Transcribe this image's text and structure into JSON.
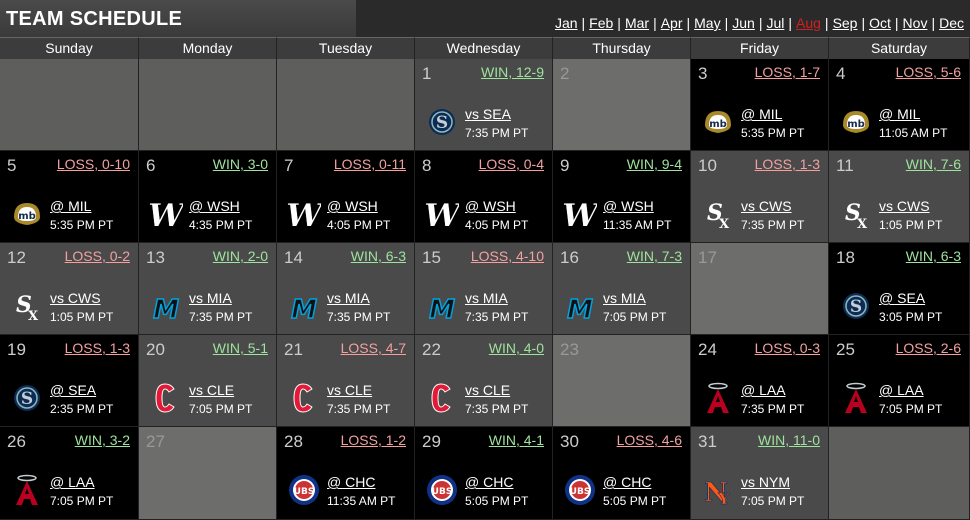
{
  "header": {
    "title": "TEAM SCHEDULE"
  },
  "months": [
    {
      "label": "Jan",
      "current": false
    },
    {
      "label": "Feb",
      "current": false
    },
    {
      "label": "Mar",
      "current": false
    },
    {
      "label": "Apr",
      "current": false
    },
    {
      "label": "May",
      "current": false
    },
    {
      "label": "Jun",
      "current": false
    },
    {
      "label": "Jul",
      "current": false
    },
    {
      "label": "Aug",
      "current": true
    },
    {
      "label": "Sep",
      "current": false
    },
    {
      "label": "Oct",
      "current": false
    },
    {
      "label": "Nov",
      "current": false
    },
    {
      "label": "Dec",
      "current": false
    }
  ],
  "month_separator": "|",
  "weekdays": [
    "Sunday",
    "Monday",
    "Tuesday",
    "Wednesday",
    "Thursday",
    "Friday",
    "Saturday"
  ],
  "colors": {
    "current_month": "#d02020",
    "win": "#9ee39e",
    "loss": "#f2a0a0",
    "home_bg": "#4a4a4a",
    "away_bg": "#000000",
    "blank_bg": "#6d6d6b"
  },
  "weeks": [
    [
      {
        "day": ""
      },
      {
        "day": ""
      },
      {
        "day": ""
      },
      {
        "day": "1",
        "result": "WIN, 12-9",
        "outcome": "win",
        "venue": "home",
        "opponent": "vs SEA",
        "time": "7:35 PM PT",
        "team": "SEA"
      },
      {
        "day": "2"
      },
      {
        "day": "3",
        "result": "LOSS, 1-7",
        "outcome": "loss",
        "venue": "away",
        "opponent": "@ MIL",
        "time": "5:35 PM PT",
        "team": "MIL"
      },
      {
        "day": "4",
        "result": "LOSS, 5-6",
        "outcome": "loss",
        "venue": "away",
        "opponent": "@ MIL",
        "time": "11:05 AM PT",
        "team": "MIL"
      }
    ],
    [
      {
        "day": "5",
        "result": "LOSS, 0-10",
        "outcome": "loss",
        "venue": "away",
        "opponent": "@ MIL",
        "time": "5:35 PM PT",
        "team": "MIL"
      },
      {
        "day": "6",
        "result": "WIN, 3-0",
        "outcome": "win",
        "venue": "away",
        "opponent": "@ WSH",
        "time": "4:35 PM PT",
        "team": "WSH"
      },
      {
        "day": "7",
        "result": "LOSS, 0-11",
        "outcome": "loss",
        "venue": "away",
        "opponent": "@ WSH",
        "time": "4:05 PM PT",
        "team": "WSH"
      },
      {
        "day": "8",
        "result": "LOSS, 0-4",
        "outcome": "loss",
        "venue": "away",
        "opponent": "@ WSH",
        "time": "4:05 PM PT",
        "team": "WSH"
      },
      {
        "day": "9",
        "result": "WIN, 9-4",
        "outcome": "win",
        "venue": "away",
        "opponent": "@ WSH",
        "time": "11:35 AM PT",
        "team": "WSH"
      },
      {
        "day": "10",
        "result": "LOSS, 1-3",
        "outcome": "loss",
        "venue": "home",
        "opponent": "vs CWS",
        "time": "7:35 PM PT",
        "team": "CWS"
      },
      {
        "day": "11",
        "result": "WIN, 7-6",
        "outcome": "win",
        "venue": "home",
        "opponent": "vs CWS",
        "time": "1:05 PM PT",
        "team": "CWS"
      }
    ],
    [
      {
        "day": "12",
        "result": "LOSS, 0-2",
        "outcome": "loss",
        "venue": "home",
        "opponent": "vs CWS",
        "time": "1:05 PM PT",
        "team": "CWS"
      },
      {
        "day": "13",
        "result": "WIN, 2-0",
        "outcome": "win",
        "venue": "home",
        "opponent": "vs MIA",
        "time": "7:35 PM PT",
        "team": "MIA"
      },
      {
        "day": "14",
        "result": "WIN, 6-3",
        "outcome": "win",
        "venue": "home",
        "opponent": "vs MIA",
        "time": "7:35 PM PT",
        "team": "MIA"
      },
      {
        "day": "15",
        "result": "LOSS, 4-10",
        "outcome": "loss",
        "venue": "home",
        "opponent": "vs MIA",
        "time": "7:35 PM PT",
        "team": "MIA"
      },
      {
        "day": "16",
        "result": "WIN, 7-3",
        "outcome": "win",
        "venue": "home",
        "opponent": "vs MIA",
        "time": "7:05 PM PT",
        "team": "MIA"
      },
      {
        "day": "17"
      },
      {
        "day": "18",
        "result": "WIN, 6-3",
        "outcome": "win",
        "venue": "away",
        "opponent": "@ SEA",
        "time": "3:05 PM PT",
        "team": "SEA"
      }
    ],
    [
      {
        "day": "19",
        "result": "LOSS, 1-3",
        "outcome": "loss",
        "venue": "away",
        "opponent": "@ SEA",
        "time": "2:35 PM PT",
        "team": "SEA"
      },
      {
        "day": "20",
        "result": "WIN, 5-1",
        "outcome": "win",
        "venue": "home",
        "opponent": "vs CLE",
        "time": "7:05 PM PT",
        "team": "CLE"
      },
      {
        "day": "21",
        "result": "LOSS, 4-7",
        "outcome": "loss",
        "venue": "home",
        "opponent": "vs CLE",
        "time": "7:35 PM PT",
        "team": "CLE"
      },
      {
        "day": "22",
        "result": "WIN, 4-0",
        "outcome": "win",
        "venue": "home",
        "opponent": "vs CLE",
        "time": "7:35 PM PT",
        "team": "CLE"
      },
      {
        "day": "23"
      },
      {
        "day": "24",
        "result": "LOSS, 0-3",
        "outcome": "loss",
        "venue": "away",
        "opponent": "@ LAA",
        "time": "7:35 PM PT",
        "team": "LAA"
      },
      {
        "day": "25",
        "result": "LOSS, 2-6",
        "outcome": "loss",
        "venue": "away",
        "opponent": "@ LAA",
        "time": "7:05 PM PT",
        "team": "LAA"
      }
    ],
    [
      {
        "day": "26",
        "result": "WIN, 3-2",
        "outcome": "win",
        "venue": "away",
        "opponent": "@ LAA",
        "time": "7:05 PM PT",
        "team": "LAA"
      },
      {
        "day": "27"
      },
      {
        "day": "28",
        "result": "LOSS, 1-2",
        "outcome": "loss",
        "venue": "away",
        "opponent": "@ CHC",
        "time": "11:35 AM PT",
        "team": "CHC"
      },
      {
        "day": "29",
        "result": "WIN, 4-1",
        "outcome": "win",
        "venue": "away",
        "opponent": "@ CHC",
        "time": "5:05 PM PT",
        "team": "CHC"
      },
      {
        "day": "30",
        "result": "LOSS, 4-6",
        "outcome": "loss",
        "venue": "away",
        "opponent": "@ CHC",
        "time": "5:05 PM PT",
        "team": "CHC"
      },
      {
        "day": "31",
        "result": "WIN, 11-0",
        "outcome": "win",
        "venue": "home",
        "opponent": "vs NYM",
        "time": "7:05 PM PT",
        "team": "NYM"
      },
      {
        "day": ""
      }
    ]
  ]
}
